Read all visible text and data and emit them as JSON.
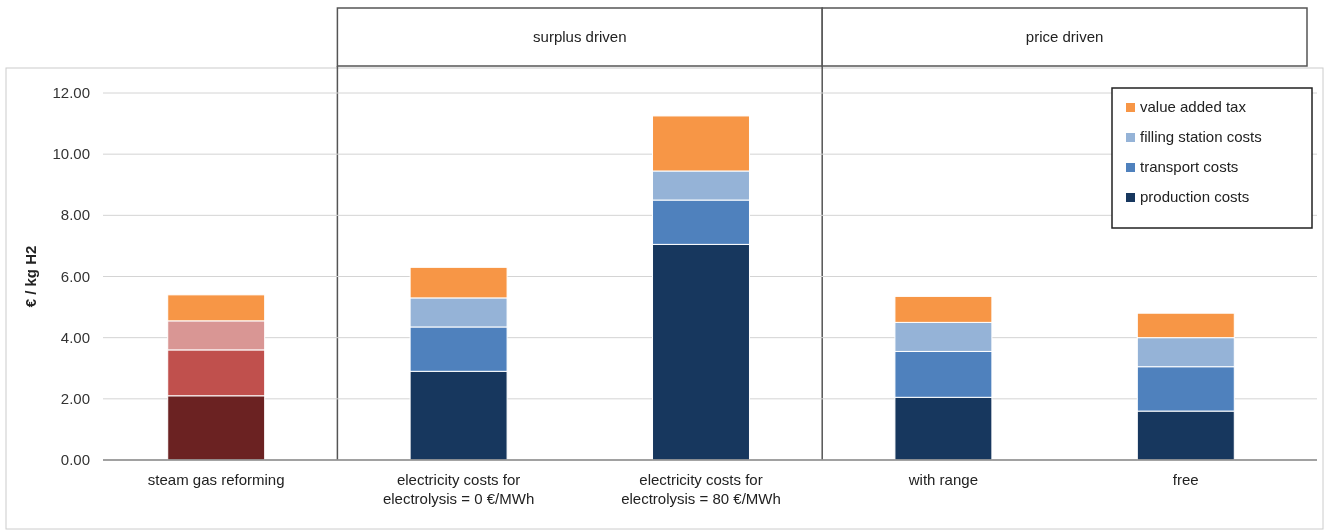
{
  "chart_data": {
    "type": "bar",
    "stacked": true,
    "ylabel": "€ / kg H2",
    "categories": [
      "steam gas reforming",
      "electricity costs for electrolysis = 0 €/MWh",
      "electricity costs for electrolysis = 80 €/MWh",
      "with range",
      "free"
    ],
    "series": [
      {
        "name": "production costs",
        "color": "#17375e",
        "colors": [
          "#6b2222",
          "#17375e",
          "#17375e",
          "#17375e",
          "#17375e"
        ],
        "values": [
          2.1,
          2.9,
          7.05,
          2.05,
          1.6
        ]
      },
      {
        "name": "transport costs",
        "color": "#4f81bd",
        "colors": [
          "#c0504d",
          "#4f81bd",
          "#4f81bd",
          "#4f81bd",
          "#4f81bd"
        ],
        "values": [
          1.5,
          1.45,
          1.45,
          1.5,
          1.45
        ]
      },
      {
        "name": "filling station costs",
        "color": "#95b3d7",
        "colors": [
          "#d99694",
          "#95b3d7",
          "#95b3d7",
          "#95b3d7",
          "#95b3d7"
        ],
        "values": [
          0.95,
          0.95,
          0.95,
          0.95,
          0.95
        ]
      },
      {
        "name": "value added tax",
        "color": "#f79646",
        "colors": [
          "#f79646",
          "#f79646",
          "#f79646",
          "#f79646",
          "#f79646"
        ],
        "values": [
          0.85,
          1.0,
          1.8,
          0.85,
          0.8
        ]
      }
    ],
    "ylim": [
      0,
      12
    ],
    "yticks": [
      {
        "value": 0,
        "label": "0.00"
      },
      {
        "value": 2,
        "label": "2.00"
      },
      {
        "value": 4,
        "label": "4.00"
      },
      {
        "value": 6,
        "label": "6.00"
      },
      {
        "value": 8,
        "label": "8.00"
      },
      {
        "value": 10,
        "label": "10.00"
      },
      {
        "value": 12,
        "label": "12.00"
      }
    ],
    "grid": "y",
    "legend": "top right",
    "annotations": [
      "surplus driven",
      "price driven"
    ]
  }
}
